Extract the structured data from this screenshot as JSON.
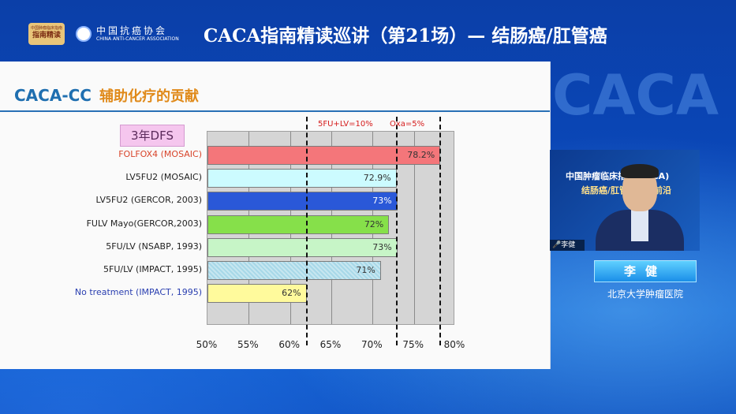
{
  "header": {
    "logo_text_small": "中国肿瘤临床指南",
    "logo_text": "指南精读",
    "association_cn": "中国抗癌协会",
    "association_en": "CHINA ANTI-CANCER ASSOCIATION",
    "title": "CACA指南精读巡讲（第21场）— 结肠癌/肛管癌"
  },
  "slide": {
    "heading_en": "CACA-CC",
    "heading_cn": "辅助化疗的贡献",
    "dfs_label": "3年DFS",
    "annot_left": "5FU+LV=10%",
    "annot_right": "Oxa=5%"
  },
  "chart_data": {
    "type": "bar",
    "orientation": "horizontal",
    "categories": [
      "FOLFOX4 (MOSAIC)",
      "LV5FU2 (MOSAIC)",
      "LV5FU2 (GERCOR, 2003)",
      "FULV Mayo(GERCOR,2003)",
      "5FU/LV  (NSABP, 1993)",
      "5FU/LV (IMPACT, 1995)",
      "No treatment (IMPACT, 1995)"
    ],
    "values": [
      78.2,
      72.9,
      73,
      72,
      73,
      71,
      62
    ],
    "value_labels": [
      "78.2%",
      "72.9%",
      "73%",
      "72%",
      "73%",
      "71%",
      "62%"
    ],
    "bar_colors": [
      "#f4767a",
      "#ccfbff",
      "#2a58d8",
      "#86e04a",
      "#c7f5c7",
      "#a7d8e8",
      "#fffa9c"
    ],
    "label_colors": [
      "#d8442a",
      "#222222",
      "#222222",
      "#222222",
      "#222222",
      "#222222",
      "#2a3fb0"
    ],
    "xlim": [
      50,
      80
    ],
    "xticks": [
      "50%",
      "55%",
      "60%",
      "65%",
      "70%",
      "75%",
      "80%"
    ],
    "reference_lines": [
      62,
      72.9,
      78.2
    ],
    "grid": true
  },
  "speaker": {
    "backdrop_line1": "中国肿瘤临床指南(CACA)",
    "backdrop_line2": "结肠癌/肛管癌诊治前沿",
    "mic_label": "李健",
    "name": "李健",
    "hospital": "北京大学肿瘤医院"
  },
  "watermark": "CACA"
}
